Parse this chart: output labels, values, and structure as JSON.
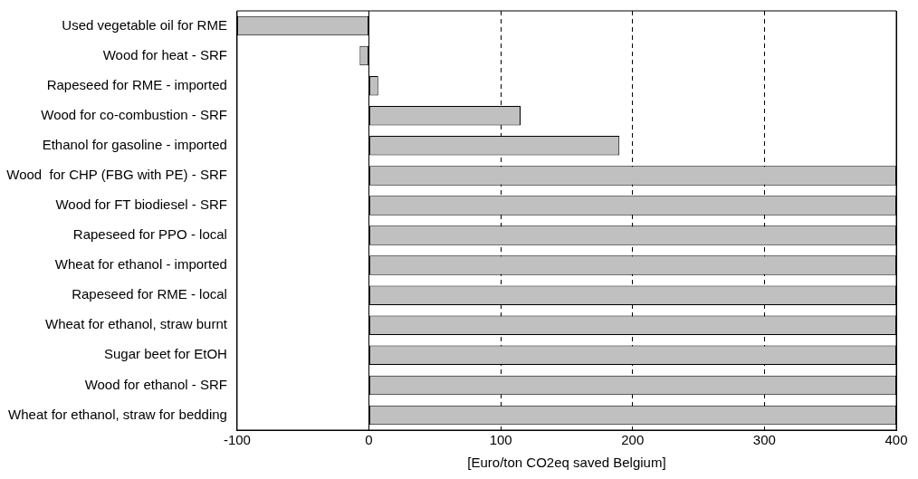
{
  "chart_data": {
    "type": "bar",
    "orientation": "horizontal",
    "xlabel": "[Euro/ton CO2eq saved Belgium]",
    "categories": [
      "Used vegetable oil for RME",
      "Wood for heat - SRF",
      "Rapeseed for RME - imported",
      "Wood for co-combustion - SRF",
      "Ethanol for gasoline - imported",
      "Wood  for CHP (FBG with PE) - SRF",
      "Wood for FT biodiesel - SRF",
      "Rapeseed for PPO - local",
      "Wheat for ethanol - imported",
      "Rapeseed for RME - local",
      "Wheat for ethanol, straw burnt",
      "Sugar beet for EtOH",
      "Wood for ethanol - SRF",
      "Wheat for ethanol, straw for bedding"
    ],
    "values": [
      -100,
      -7,
      7,
      115,
      190,
      400,
      400,
      400,
      400,
      400,
      400,
      400,
      400,
      400
    ],
    "color": "#c0c0c0",
    "xlim": [
      -100,
      400
    ],
    "xticks": [
      -100,
      0,
      100,
      200,
      300,
      400
    ],
    "grid": "x",
    "legend": false
  }
}
